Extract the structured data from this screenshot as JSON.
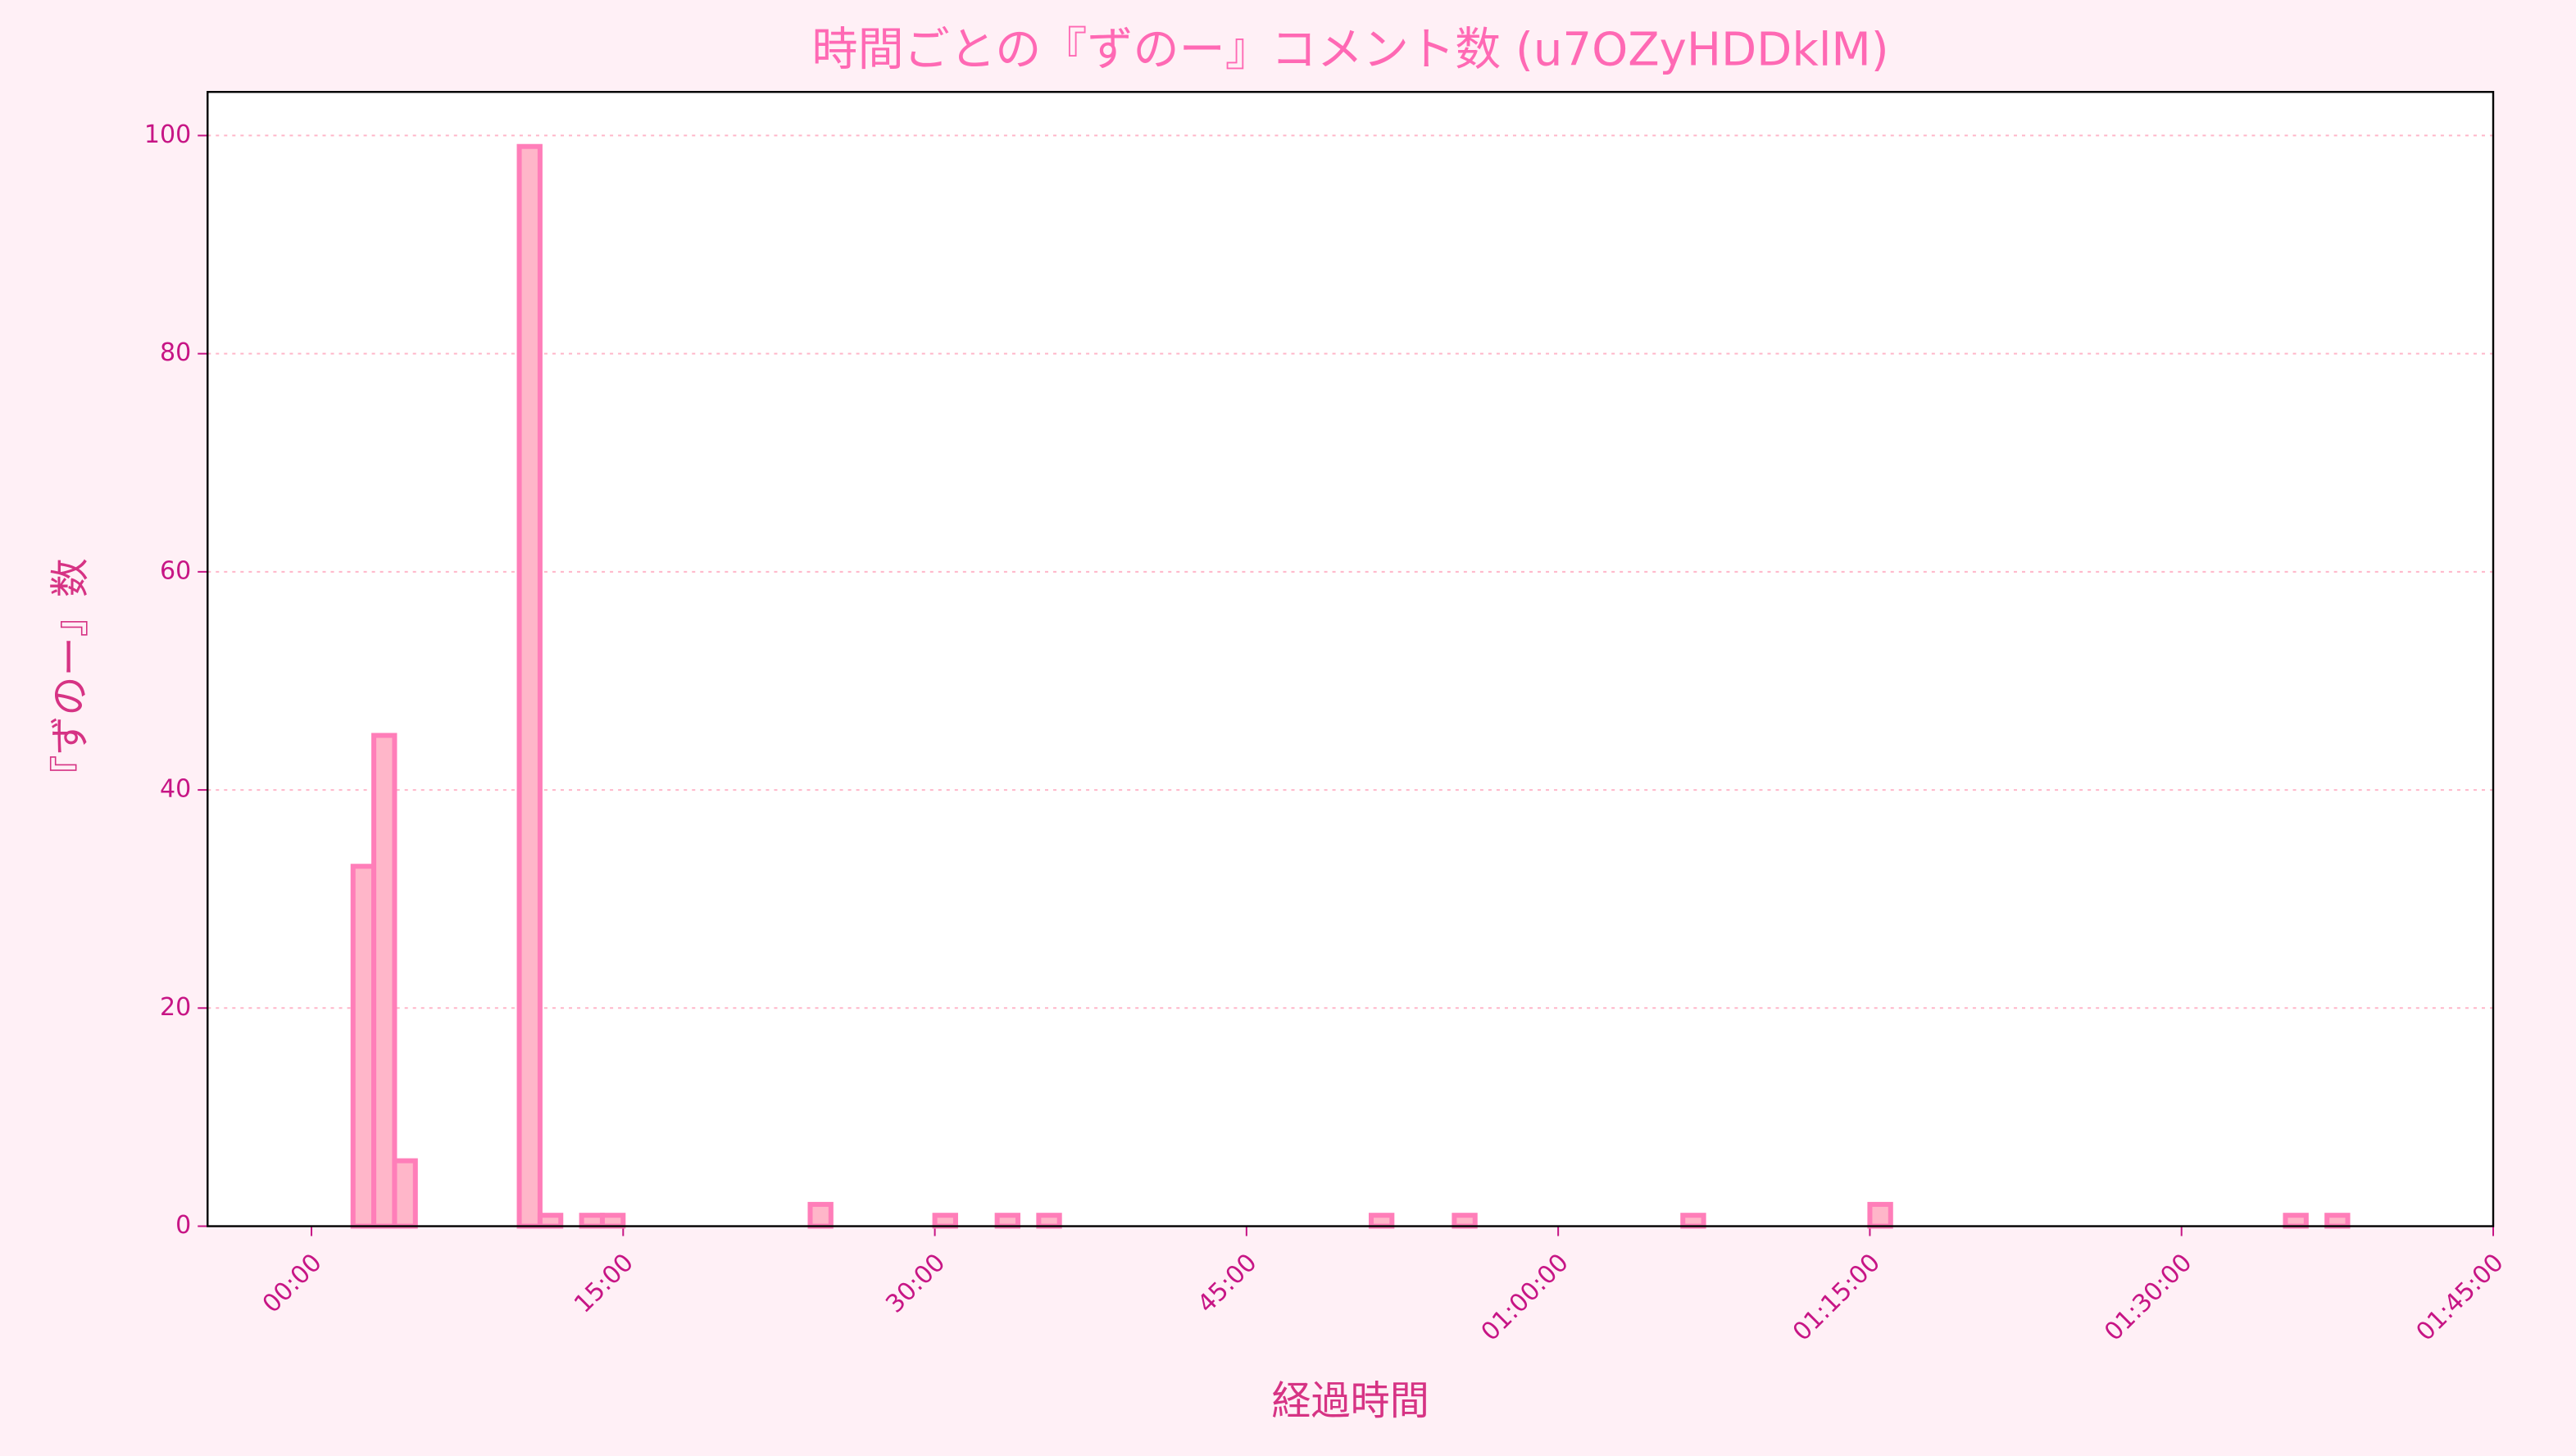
{
  "chart_data": {
    "type": "histogram",
    "title": "時間ごとの『ずのー』コメント数 (u7OZyHDDklM)",
    "x_label": "経過時間",
    "y_label": "『ずのー』数",
    "bins": [
      0,
      1,
      2,
      3,
      4,
      5,
      6,
      7,
      8,
      9,
      10,
      11,
      12,
      13,
      14,
      15,
      16,
      17,
      18,
      19,
      20,
      21,
      22,
      23,
      24,
      25,
      26,
      27,
      28,
      29,
      30,
      31,
      32,
      33,
      34,
      35,
      36,
      37,
      38,
      39,
      40,
      41,
      42,
      43,
      44,
      45,
      46,
      47,
      48,
      49,
      50,
      51,
      52,
      53,
      54,
      55,
      56,
      57,
      58,
      59,
      60,
      61,
      62,
      63,
      64,
      65,
      66,
      67,
      68,
      69,
      70,
      71,
      72,
      73,
      74,
      75,
      76,
      77,
      78,
      79,
      80,
      81,
      82,
      83,
      84,
      85,
      86,
      87,
      88,
      89,
      90,
      91,
      92,
      93,
      94,
      95,
      96,
      97,
      98,
      99
    ],
    "values": [
      0,
      0,
      33,
      45,
      6,
      0,
      0,
      0,
      0,
      0,
      99,
      1,
      0,
      1,
      1,
      0,
      0,
      0,
      0,
      0,
      0,
      0,
      0,
      0,
      2,
      0,
      0,
      0,
      0,
      0,
      1,
      0,
      0,
      1,
      0,
      1,
      0,
      0,
      0,
      0,
      0,
      0,
      0,
      0,
      0,
      0,
      0,
      0,
      0,
      0,
      0,
      1,
      0,
      0,
      0,
      1,
      0,
      0,
      0,
      0,
      0,
      0,
      0,
      0,
      0,
      0,
      1,
      0,
      0,
      0,
      0,
      0,
      0,
      0,
      0,
      2,
      0,
      0,
      0,
      0,
      0,
      0,
      0,
      0,
      0,
      0,
      0,
      0,
      0,
      0,
      0,
      0,
      0,
      0,
      0,
      1,
      0,
      1,
      0
    ],
    "color": "#ffb6c9",
    "edge_color": "#ff7eb9",
    "xlim": [
      -5,
      105
    ],
    "xticks": [
      {
        "value": 0,
        "label": "00:00"
      },
      {
        "value": 15,
        "label": "15:00"
      },
      {
        "value": 30,
        "label": "30:00"
      },
      {
        "value": 45,
        "label": "45:00"
      },
      {
        "value": 60,
        "label": "01:00:00"
      },
      {
        "value": 75,
        "label": "01:15:00"
      },
      {
        "value": 90,
        "label": "01:30:00"
      },
      {
        "value": 105,
        "label": "01:45:00"
      }
    ],
    "ylim": [
      0,
      104
    ],
    "yticks": [
      0,
      20,
      40,
      60,
      80,
      100
    ],
    "grid": true
  }
}
